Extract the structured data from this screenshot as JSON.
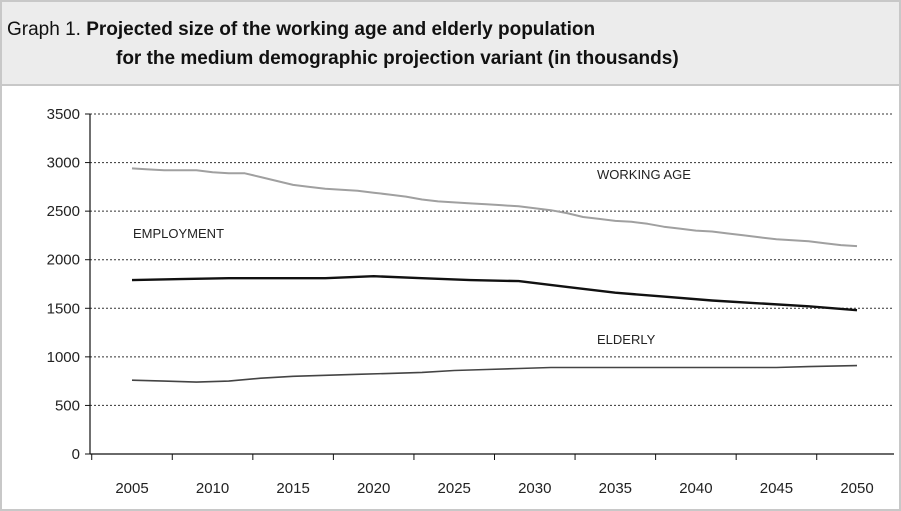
{
  "title": {
    "prefix": "Graph 1.",
    "line1": "Projected size of the working age and elderly population",
    "line2": "for the medium demographic projection variant (in thousands)"
  },
  "chart_data": {
    "type": "line",
    "ylim": [
      0,
      3500
    ],
    "yticks": [
      0,
      500,
      1000,
      1500,
      2000,
      2500,
      3000,
      3500
    ],
    "xlim": [
      2005,
      2050
    ],
    "xticks": [
      2005,
      2010,
      2015,
      2020,
      2025,
      2030,
      2035,
      2040,
      2045,
      2050
    ],
    "grid": "horizontal dashed",
    "annotations": [
      "WORKING AGE",
      "EMPLOYMENT",
      "ELDERLY"
    ],
    "series": [
      {
        "name": "WORKING AGE",
        "color": "#a0a0a0",
        "x": [
          2005,
          2006,
          2007,
          2008,
          2009,
          2010,
          2011,
          2012,
          2013,
          2014,
          2015,
          2016,
          2017,
          2018,
          2019,
          2020,
          2021,
          2022,
          2023,
          2024,
          2025,
          2026,
          2027,
          2028,
          2029,
          2030,
          2031,
          2032,
          2033,
          2034,
          2035,
          2036,
          2037,
          2038,
          2039,
          2040,
          2041,
          2042,
          2043,
          2044,
          2045,
          2046,
          2047,
          2048,
          2049,
          2050
        ],
        "values": [
          2940,
          2930,
          2920,
          2920,
          2920,
          2900,
          2890,
          2890,
          2850,
          2810,
          2770,
          2750,
          2730,
          2720,
          2710,
          2690,
          2670,
          2650,
          2620,
          2600,
          2590,
          2580,
          2570,
          2560,
          2550,
          2530,
          2510,
          2480,
          2440,
          2420,
          2400,
          2390,
          2370,
          2340,
          2320,
          2300,
          2290,
          2270,
          2250,
          2230,
          2210,
          2200,
          2190,
          2170,
          2150,
          2140
        ]
      },
      {
        "name": "EMPLOYMENT",
        "color": "#111111",
        "x": [
          2005,
          2008,
          2011,
          2014,
          2017,
          2020,
          2023,
          2026,
          2029,
          2032,
          2035,
          2038,
          2041,
          2044,
          2047,
          2050
        ],
        "values": [
          1790,
          1800,
          1810,
          1810,
          1810,
          1830,
          1810,
          1790,
          1780,
          1720,
          1660,
          1620,
          1580,
          1550,
          1520,
          1480
        ]
      },
      {
        "name": "ELDERLY",
        "color": "#444444",
        "x": [
          2005,
          2007,
          2009,
          2011,
          2013,
          2015,
          2017,
          2019,
          2021,
          2023,
          2025,
          2027,
          2029,
          2031,
          2033,
          2035,
          2037,
          2039,
          2041,
          2043,
          2045,
          2047,
          2050
        ],
        "values": [
          760,
          750,
          740,
          750,
          780,
          800,
          810,
          820,
          830,
          840,
          860,
          870,
          880,
          890,
          890,
          890,
          890,
          890,
          890,
          890,
          890,
          900,
          910
        ]
      }
    ]
  }
}
